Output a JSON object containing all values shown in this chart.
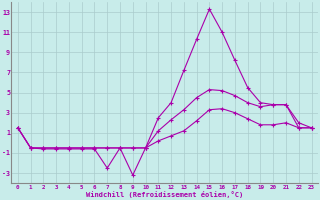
{
  "xlabel": "Windchill (Refroidissement éolien,°C)",
  "xlim": [
    -0.5,
    23.5
  ],
  "ylim": [
    -4.0,
    14.0
  ],
  "yticks": [
    -3,
    -1,
    1,
    3,
    5,
    7,
    9,
    11,
    13
  ],
  "xticks": [
    0,
    1,
    2,
    3,
    4,
    5,
    6,
    7,
    8,
    9,
    10,
    11,
    12,
    13,
    14,
    15,
    16,
    17,
    18,
    19,
    20,
    21,
    22,
    23
  ],
  "background_color": "#c8ecea",
  "grid_color": "#aacccc",
  "line_color": "#aa00aa",
  "hours": [
    0,
    1,
    2,
    3,
    4,
    5,
    6,
    7,
    8,
    9,
    10,
    11,
    12,
    13,
    14,
    15,
    16,
    17,
    18,
    19,
    20,
    21,
    22,
    23
  ],
  "line_max": [
    1.5,
    -0.5,
    -0.6,
    -0.6,
    -0.6,
    -0.6,
    -0.6,
    -2.5,
    -0.5,
    -3.2,
    -0.5,
    2.5,
    4.0,
    7.2,
    10.3,
    13.3,
    11.0,
    8.2,
    5.5,
    4.0,
    3.8,
    3.8,
    1.5,
    1.5
  ],
  "line_avg": [
    1.5,
    -0.5,
    -0.5,
    -0.5,
    -0.5,
    -0.5,
    -0.5,
    -0.5,
    -0.5,
    -0.5,
    -0.5,
    1.2,
    2.3,
    3.3,
    4.5,
    5.3,
    5.2,
    4.7,
    4.0,
    3.6,
    3.8,
    3.8,
    2.0,
    1.5
  ],
  "line_min": [
    1.5,
    -0.5,
    -0.5,
    -0.5,
    -0.5,
    -0.5,
    -0.5,
    -0.5,
    -0.5,
    -0.5,
    -0.5,
    0.2,
    0.7,
    1.2,
    2.2,
    3.3,
    3.4,
    3.0,
    2.4,
    1.8,
    1.8,
    2.0,
    1.5,
    1.5
  ]
}
